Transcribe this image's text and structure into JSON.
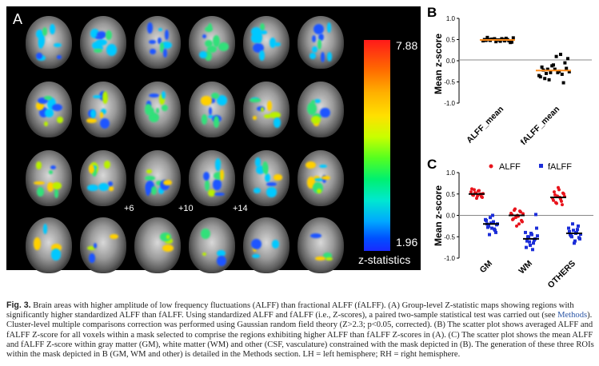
{
  "panelA": {
    "label": "A",
    "colorbar": {
      "max": "7.88",
      "min": "1.96",
      "title": "z-statistics"
    },
    "slice_labels": [
      "+6",
      "+10",
      "+14"
    ]
  },
  "panelB": {
    "label": "B",
    "ylabel": "Mean z-score",
    "yticks": [
      "1.0",
      "0.5",
      "0.0",
      "-0.5",
      "-1.0"
    ],
    "categories": [
      "ALFF_mean",
      "fALFF_mean"
    ]
  },
  "panelC": {
    "label": "C",
    "ylabel": "Mean z-score",
    "yticks": [
      "1.0",
      "0.5",
      "0.0",
      "-0.5",
      "-1.0"
    ],
    "categories": [
      "GM",
      "WM",
      "OTHERS"
    ],
    "legend": [
      "ALFF",
      "fALFF"
    ]
  },
  "chart_data": [
    {
      "type": "scatter",
      "ylabel": "Mean z-score",
      "ylim": [
        -1.0,
        1.0
      ],
      "categories": [
        "ALFF_mean",
        "fALFF_mean"
      ],
      "series": [
        {
          "values": [
            0.47,
            0.48,
            0.5,
            0.51,
            0.52,
            0.49,
            0.46,
            0.5,
            0.53,
            0.47,
            0.44,
            0.5,
            0.55,
            0.48,
            0.51,
            0.45,
            0.49,
            0.52,
            0.47,
            0.5,
            0.43,
            0.54
          ]
        },
        {
          "values": [
            -0.35,
            -0.15,
            -0.42,
            -0.2,
            -0.28,
            -0.1,
            0.1,
            -0.25,
            -0.32,
            -0.05,
            0.05,
            -0.38,
            -0.22,
            -0.3,
            -0.45,
            -0.12,
            -0.2,
            -0.28,
            0.15,
            -0.52,
            -0.18,
            -0.26
          ]
        }
      ],
      "means": [
        0.49,
        -0.23
      ],
      "mean_color": "#ff8c1a",
      "grid": false
    },
    {
      "type": "scatter",
      "ylabel": "Mean z-score",
      "ylim": [
        -1.0,
        1.0
      ],
      "categories": [
        "GM",
        "WM",
        "OTHERS"
      ],
      "series": [
        {
          "name": "ALFF",
          "color": "#e8141c",
          "values": [
            [
              0.55,
              0.48,
              0.6,
              0.52,
              0.45,
              0.58,
              0.5,
              0.42,
              0.62,
              0.47,
              0.53,
              0.4,
              0.57,
              0.49,
              0.44,
              0.51
            ],
            [
              0.05,
              -0.1,
              0.12,
              -0.05,
              0.0,
              -0.2,
              0.08,
              -0.15,
              0.02,
              -0.08,
              0.15,
              -0.25,
              -0.02,
              0.1,
              -0.12,
              0.04
            ],
            [
              0.4,
              0.55,
              0.3,
              0.45,
              0.6,
              0.38,
              0.25,
              0.5,
              0.35,
              0.48,
              0.28,
              0.65,
              0.42,
              0.33,
              0.52,
              0.44
            ]
          ]
        },
        {
          "name": "fALFF",
          "color": "#1c2ed8",
          "values": [
            [
              -0.1,
              -0.2,
              -0.25,
              -0.05,
              -0.3,
              -0.15,
              -0.35,
              -0.22,
              -0.12,
              -0.28,
              -0.45,
              -0.18,
              0.0,
              -0.32,
              -0.4,
              -0.2
            ],
            [
              -0.4,
              -0.6,
              -0.5,
              -0.7,
              -0.45,
              -0.65,
              -0.55,
              -0.3,
              -0.75,
              -0.5,
              -0.62,
              -0.42,
              -0.8,
              -0.58,
              0.02,
              -0.48
            ],
            [
              -0.3,
              -0.45,
              -0.5,
              -0.35,
              -0.6,
              -0.4,
              -0.25,
              -0.55,
              -0.38,
              -0.48,
              -0.2,
              -0.65,
              -0.42,
              -0.33,
              -0.52,
              -0.44
            ]
          ]
        }
      ],
      "means": {
        "ALFF": [
          0.5,
          0.0,
          0.42
        ],
        "fALFF": [
          -0.2,
          -0.55,
          -0.42
        ]
      },
      "mean_color": "#000000",
      "grid": false
    }
  ],
  "caption": {
    "bold_prefix": "Fig. 3.",
    "text": " Brain areas with higher amplitude of low frequency fluctuations (ALFF) than fractional ALFF (fALFF). (A) Group-level Z-statistic maps showing regions with significantly higher standardized ALFF than fALFF. Using standardized ALFF and fALFF (i.e., Z-scores), a paired two-sample statistical test was carried out (see ",
    "link": "Methods",
    "text2": "). Cluster-level multiple comparisons correction was performed using Gaussian random field theory (Z>2.3; p<0.05, corrected). (B) The scatter plot shows averaged ALFF and fALFF Z-score for all voxels within a mask selected to comprise the regions exhibiting higher ALFF than fALFF Z-scores in (A). (C) The scatter plot shows the mean ALFF and fALFF Z-score within gray matter (GM), white matter (WM) and other (CSF, vasculature) constrained with the mask depicted in (B). The generation of these three ROIs within the mask depicted in B (GM, WM and other) is detailed in the Methods section. LH = left hemisphere; RH = right hemisphere."
  }
}
